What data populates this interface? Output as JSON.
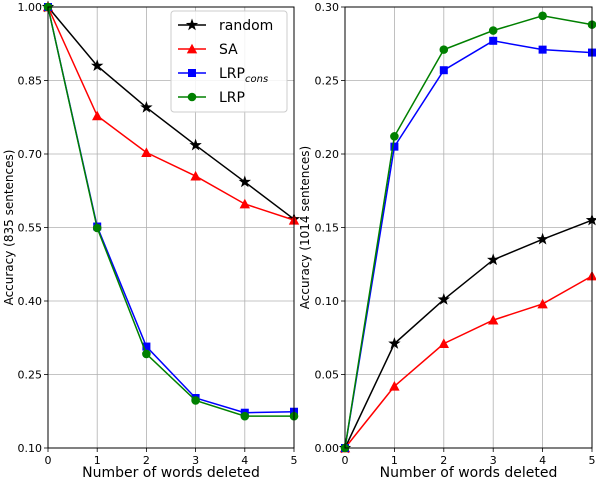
{
  "chart_data": [
    {
      "type": "line",
      "xlabel": "Number of words deleted",
      "ylabel": "Accuracy (835 sentences)",
      "x": [
        0,
        1,
        2,
        3,
        4,
        5
      ],
      "xlim": [
        0,
        5
      ],
      "ylim": [
        0.1,
        1.0
      ],
      "xticks": [
        "0",
        "1",
        "2",
        "3",
        "4",
        "5"
      ],
      "yticks": [
        0.1,
        0.25,
        0.4,
        0.55,
        0.7,
        0.85,
        1.0
      ],
      "ytick_labels": [
        "0.10",
        "0.25",
        "0.40",
        "0.55",
        "0.70",
        "0.85",
        "1.00"
      ],
      "grid": true,
      "legend_position": "top-right",
      "series": [
        {
          "name": "random",
          "label_main": "random",
          "label_sub": "",
          "color": "#000000",
          "marker": "star",
          "values": [
            1.0,
            0.88,
            0.795,
            0.718,
            0.643,
            0.567
          ]
        },
        {
          "name": "SA",
          "label_main": "SA",
          "label_sub": "",
          "color": "#ff0000",
          "marker": "triangle",
          "values": [
            1.0,
            0.778,
            0.703,
            0.655,
            0.598,
            0.565
          ]
        },
        {
          "name": "LRPcons",
          "label_main": "LRP",
          "label_sub": "cons",
          "color": "#0000ff",
          "marker": "square",
          "values": [
            1.0,
            0.552,
            0.307,
            0.202,
            0.172,
            0.174
          ]
        },
        {
          "name": "LRP",
          "label_main": "LRP",
          "label_sub": "",
          "color": "#008000",
          "marker": "circle",
          "values": [
            1.0,
            0.549,
            0.292,
            0.197,
            0.165,
            0.165
          ]
        }
      ]
    },
    {
      "type": "line",
      "xlabel": "Number of words deleted",
      "ylabel": "Accuracy (1014 sentences)",
      "x": [
        0,
        1,
        2,
        3,
        4,
        5
      ],
      "xlim": [
        0,
        5
      ],
      "ylim": [
        0.0,
        0.3
      ],
      "xticks": [
        "0",
        "1",
        "2",
        "3",
        "4",
        "5"
      ],
      "yticks": [
        0.0,
        0.05,
        0.1,
        0.15,
        0.2,
        0.25,
        0.3
      ],
      "ytick_labels": [
        "0.00",
        "0.05",
        "0.10",
        "0.15",
        "0.20",
        "0.25",
        "0.30"
      ],
      "grid": true,
      "series": [
        {
          "name": "random",
          "color": "#000000",
          "marker": "star",
          "values": [
            0.0,
            0.071,
            0.101,
            0.128,
            0.142,
            0.155
          ]
        },
        {
          "name": "SA",
          "color": "#ff0000",
          "marker": "triangle",
          "values": [
            0.0,
            0.042,
            0.071,
            0.087,
            0.098,
            0.117
          ]
        },
        {
          "name": "LRPcons",
          "color": "#0000ff",
          "marker": "square",
          "values": [
            0.0,
            0.205,
            0.257,
            0.277,
            0.271,
            0.269
          ]
        },
        {
          "name": "LRP",
          "color": "#008000",
          "marker": "circle",
          "values": [
            0.0,
            0.212,
            0.271,
            0.284,
            0.294,
            0.288
          ]
        }
      ]
    }
  ]
}
